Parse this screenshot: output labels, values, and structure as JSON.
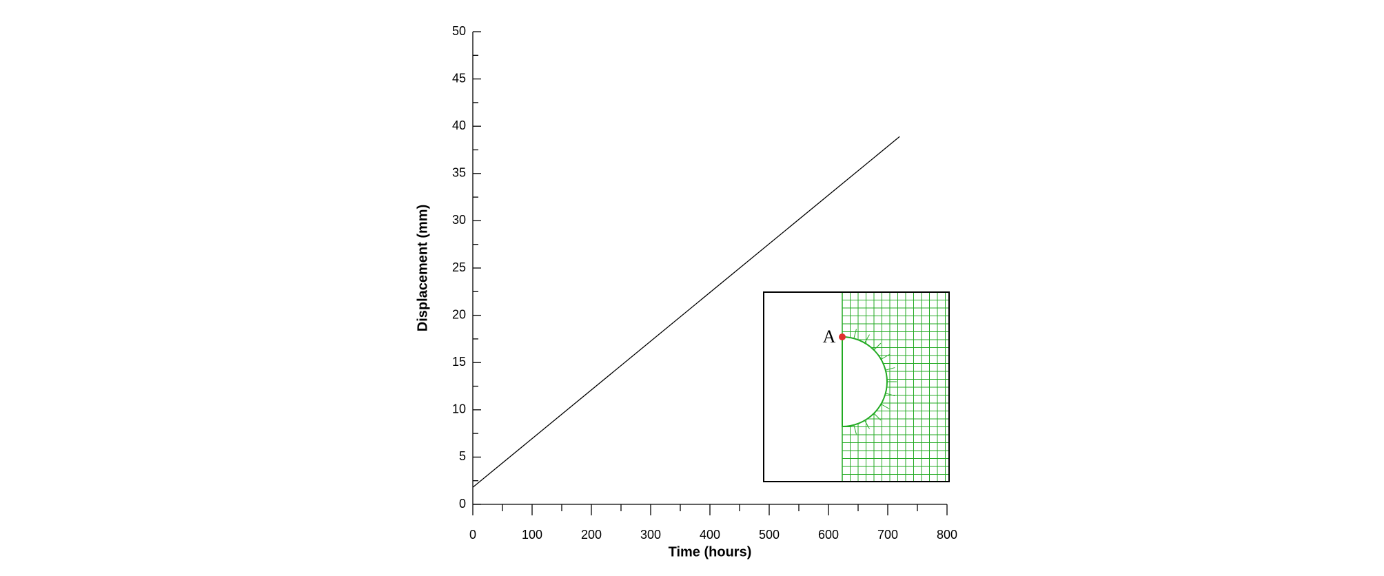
{
  "chart_data": {
    "type": "line",
    "x_label": "Time (hours)",
    "y_label": "Displacement (mm)",
    "x": [
      0,
      720
    ],
    "series": [
      {
        "color": "#000000",
        "values": [
          1.8,
          38.9
        ]
      }
    ],
    "xlim": [
      0,
      800
    ],
    "xticks": [
      0,
      100,
      200,
      300,
      400,
      500,
      600,
      700,
      800
    ],
    "xminorticks": [
      50,
      150,
      250,
      350,
      450,
      550,
      650,
      750
    ],
    "ylim": [
      0,
      50
    ],
    "yticks": [
      0,
      5,
      10,
      15,
      20,
      25,
      30,
      35,
      40,
      45,
      50
    ],
    "yminorticks": [
      2.5,
      7.5,
      12.5,
      17.5,
      22.5,
      27.5,
      32.5,
      37.5,
      42.5,
      47.5
    ],
    "inset_label": "A"
  }
}
